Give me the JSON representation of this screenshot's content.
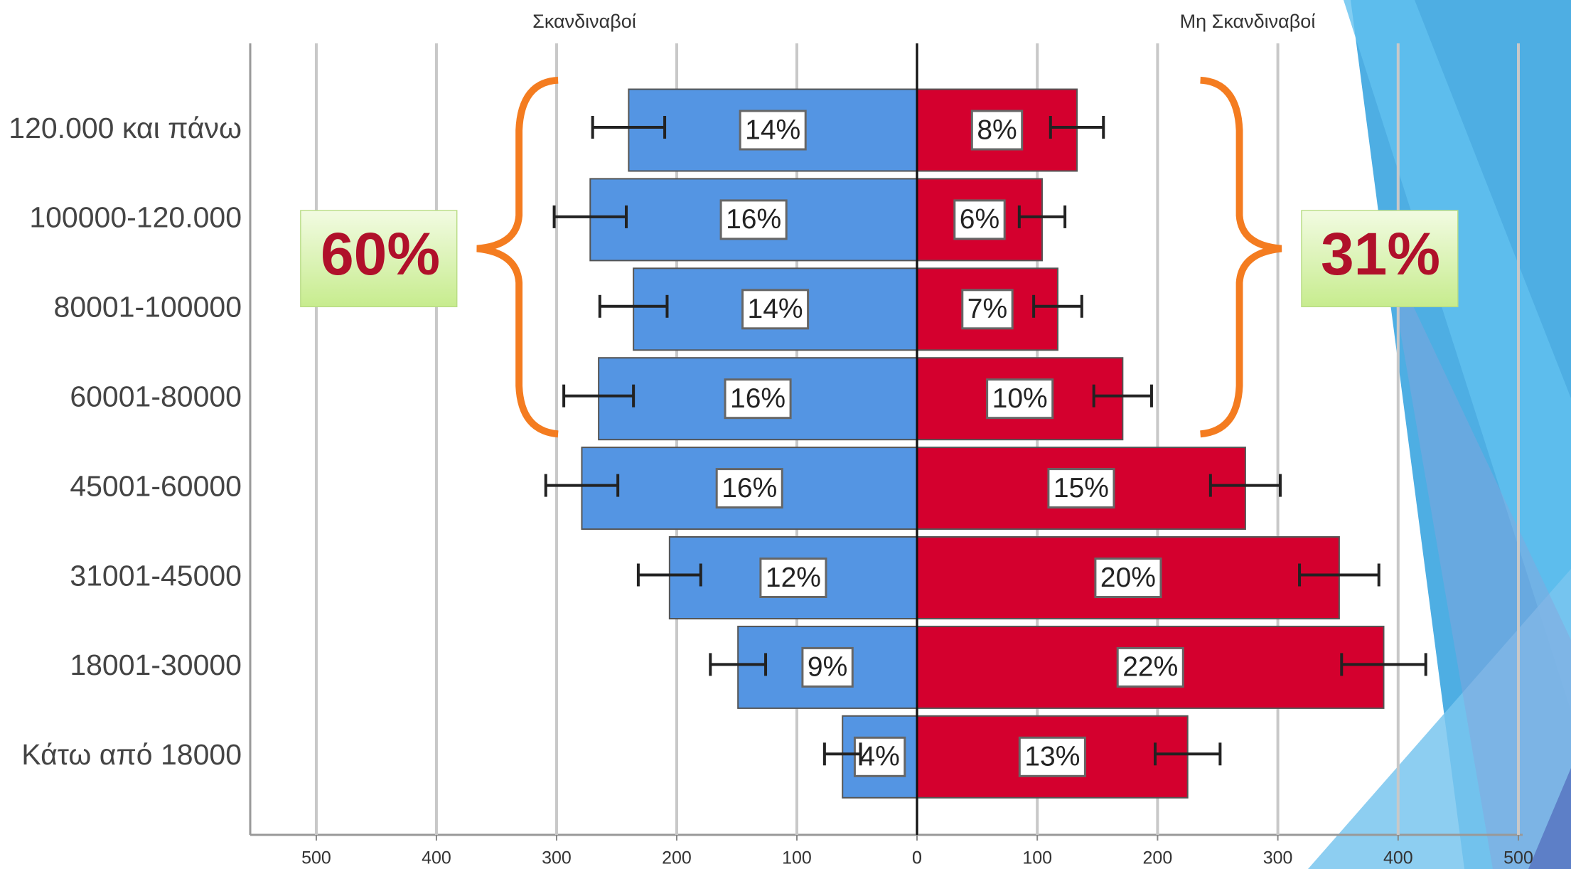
{
  "chart_data": {
    "type": "bar",
    "categories": [
      "120.000 και πάνω",
      "100000-120.000",
      "80001-100000",
      "60001-80000",
      "45001-60000",
      "31001-45000",
      "18001-30000",
      "Κάτω από 18000"
    ],
    "series": [
      {
        "name": "Σκανδιναβοί",
        "color": "#5495e3",
        "side": "left",
        "values": [
          240,
          272,
          236,
          265,
          279,
          206,
          149,
          62
        ],
        "errors": [
          30,
          30,
          28,
          29,
          30,
          26,
          23,
          15
        ],
        "percent_labels": [
          "14%",
          "16%",
          "14%",
          "16%",
          "16%",
          "12%",
          "9%",
          "4%"
        ],
        "xlim": [
          0,
          555
        ],
        "xticks": [
          0,
          100,
          200,
          300,
          400,
          500
        ]
      },
      {
        "name": "Μη Σκανδιναβοί",
        "color": "#d4002e",
        "side": "right",
        "values": [
          133,
          104,
          117,
          171,
          273,
          351,
          388,
          225
        ],
        "errors": [
          22,
          19,
          20,
          24,
          29,
          33,
          35,
          27
        ],
        "percent_labels": [
          "8%",
          "6%",
          "7%",
          "10%",
          "15%",
          "20%",
          "22%",
          "13%"
        ],
        "xlim": [
          0,
          500
        ],
        "xticks": [
          0,
          100,
          200,
          300,
          400,
          500
        ]
      }
    ],
    "annotations": [
      "60%",
      "31%"
    ],
    "grid": true
  }
}
